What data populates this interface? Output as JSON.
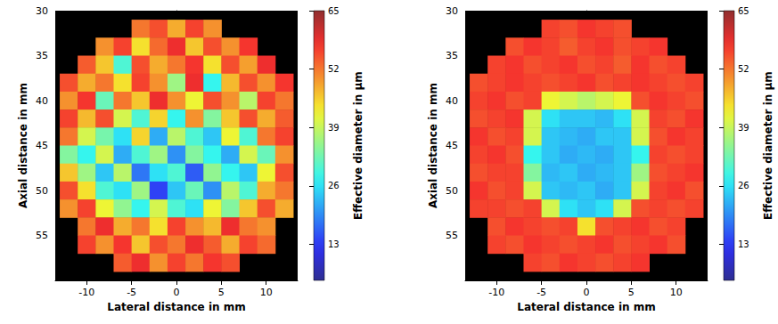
{
  "chart_data": [
    {
      "type": "heatmap",
      "x_label": "Lateral distance in mm",
      "y_label": "Axial distance in mm",
      "xlim": [
        -13.5,
        13.5
      ],
      "ylim": [
        30,
        60
      ],
      "xticks": [
        -10,
        -5,
        0,
        5,
        10
      ],
      "yticks": [
        30,
        35,
        40,
        45,
        50,
        55
      ],
      "grid": false,
      "x": [
        -12,
        -10,
        -8,
        -6,
        -4,
        -2,
        0,
        2,
        4,
        6,
        8,
        10,
        12
      ],
      "y": [
        32,
        34,
        36,
        38,
        40,
        42,
        44,
        46,
        48,
        50,
        52,
        54,
        56,
        58
      ],
      "cells": [
        [
          null,
          null,
          null,
          null,
          52,
          55,
          48,
          56,
          50,
          null,
          null,
          null,
          null
        ],
        [
          null,
          null,
          50,
          56,
          44,
          53,
          58,
          46,
          55,
          50,
          57,
          null,
          null
        ],
        [
          null,
          54,
          46,
          30,
          55,
          48,
          52,
          57,
          44,
          55,
          49,
          58,
          null
        ],
        [
          55,
          48,
          52,
          44,
          56,
          50,
          36,
          58,
          28,
          47,
          55,
          50,
          57
        ],
        [
          50,
          57,
          32,
          52,
          46,
          58,
          50,
          42,
          55,
          50,
          38,
          56,
          52
        ],
        [
          56,
          47,
          55,
          40,
          30,
          45,
          28,
          50,
          34,
          46,
          55,
          48,
          54
        ],
        [
          52,
          40,
          33,
          26,
          45,
          22,
          38,
          30,
          24,
          42,
          30,
          52,
          56
        ],
        [
          34,
          28,
          40,
          22,
          30,
          36,
          20,
          34,
          28,
          22,
          40,
          32,
          50
        ],
        [
          46,
          36,
          24,
          38,
          18,
          26,
          30,
          16,
          35,
          28,
          24,
          42,
          55
        ],
        [
          55,
          44,
          30,
          26,
          36,
          14,
          24,
          32,
          20,
          38,
          30,
          48,
          52
        ],
        [
          50,
          56,
          42,
          35,
          28,
          40,
          30,
          26,
          42,
          34,
          46,
          55,
          48
        ],
        [
          null,
          52,
          58,
          48,
          52,
          44,
          56,
          50,
          47,
          58,
          52,
          50,
          null
        ],
        [
          null,
          56,
          50,
          57,
          46,
          55,
          52,
          58,
          54,
          48,
          56,
          53,
          null
        ],
        [
          null,
          null,
          null,
          54,
          58,
          50,
          56,
          52,
          57,
          55,
          null,
          null,
          null
        ]
      ],
      "colorbar_label": "Effective diameter in µm",
      "colorbar_lim": [
        5,
        65
      ],
      "colorbar_ticks": [
        13,
        26,
        39,
        52,
        65
      ]
    },
    {
      "type": "heatmap",
      "x_label": "Lateral distance in mm",
      "y_label": "Axial distance in mm",
      "xlim": [
        -13.5,
        13.5
      ],
      "ylim": [
        30,
        60
      ],
      "xticks": [
        -10,
        -5,
        0,
        5,
        10
      ],
      "yticks": [
        30,
        35,
        40,
        45,
        50,
        55
      ],
      "grid": false,
      "x": [
        -12,
        -10,
        -8,
        -6,
        -4,
        -2,
        0,
        2,
        4,
        6,
        8,
        10,
        12
      ],
      "y": [
        32,
        34,
        36,
        38,
        40,
        42,
        44,
        46,
        48,
        50,
        52,
        54,
        56,
        58
      ],
      "cells": [
        [
          null,
          null,
          null,
          null,
          56,
          55,
          57,
          56,
          55,
          null,
          null,
          null,
          null
        ],
        [
          null,
          null,
          55,
          57,
          56,
          54,
          56,
          57,
          55,
          56,
          57,
          null,
          null
        ],
        [
          null,
          56,
          57,
          55,
          56,
          57,
          55,
          56,
          54,
          57,
          55,
          56,
          null
        ],
        [
          55,
          56,
          57,
          56,
          55,
          56,
          57,
          55,
          56,
          57,
          56,
          55,
          56
        ],
        [
          56,
          57,
          55,
          56,
          42,
          40,
          38,
          40,
          42,
          55,
          57,
          56,
          55
        ],
        [
          55,
          56,
          57,
          40,
          26,
          24,
          24,
          23,
          26,
          40,
          56,
          55,
          57
        ],
        [
          57,
          55,
          56,
          40,
          24,
          23,
          22,
          24,
          24,
          40,
          55,
          57,
          56
        ],
        [
          56,
          57,
          55,
          28,
          24,
          22,
          23,
          22,
          24,
          28,
          56,
          55,
          56
        ],
        [
          55,
          56,
          56,
          34,
          23,
          24,
          22,
          23,
          24,
          36,
          55,
          56,
          57
        ],
        [
          57,
          55,
          56,
          40,
          24,
          23,
          24,
          22,
          24,
          40,
          56,
          57,
          55
        ],
        [
          56,
          56,
          55,
          56,
          40,
          26,
          24,
          26,
          40,
          55,
          56,
          55,
          56
        ],
        [
          null,
          55,
          57,
          56,
          55,
          56,
          44,
          55,
          56,
          57,
          55,
          56,
          null
        ],
        [
          null,
          56,
          55,
          57,
          56,
          55,
          56,
          57,
          55,
          56,
          57,
          55,
          null
        ],
        [
          null,
          null,
          null,
          56,
          55,
          57,
          56,
          55,
          56,
          57,
          null,
          null,
          null
        ]
      ],
      "colorbar_label": "Effective diameter in µm",
      "colorbar_lim": [
        5,
        65
      ],
      "colorbar_ticks": [
        13,
        26,
        39,
        52,
        65
      ]
    }
  ]
}
